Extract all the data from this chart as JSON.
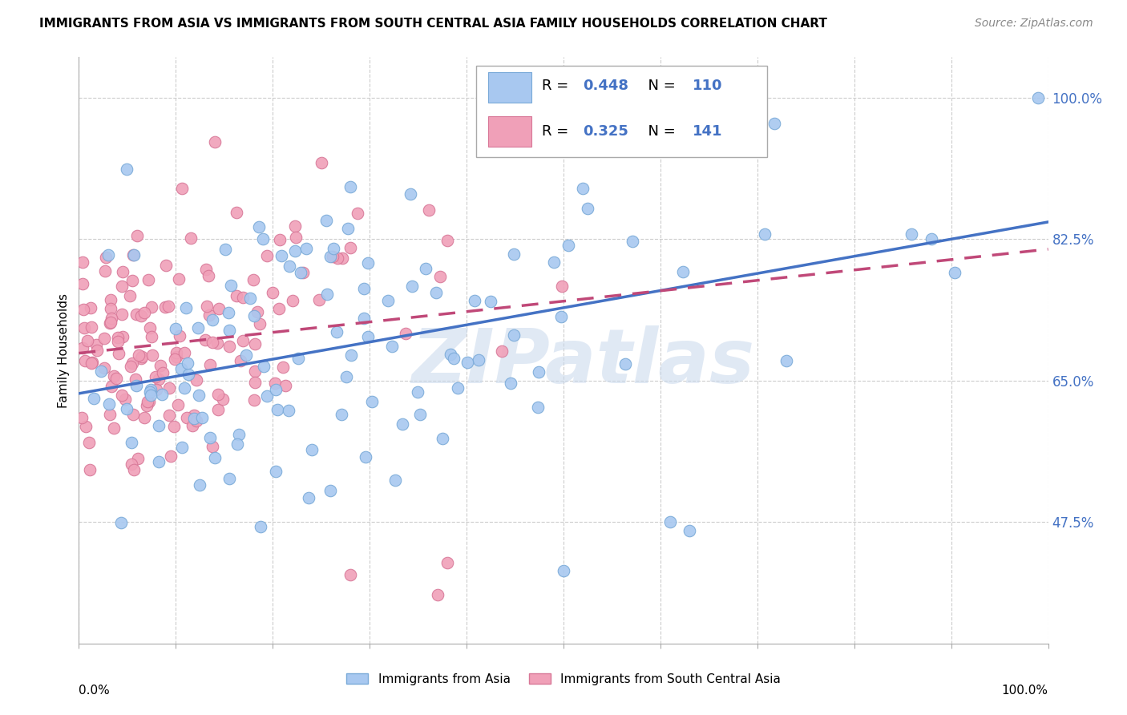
{
  "title": "IMMIGRANTS FROM ASIA VS IMMIGRANTS FROM SOUTH CENTRAL ASIA FAMILY HOUSEHOLDS CORRELATION CHART",
  "source": "Source: ZipAtlas.com",
  "ylabel": "Family Households",
  "ytick_labels": [
    "100.0%",
    "82.5%",
    "65.0%",
    "47.5%"
  ],
  "ytick_values": [
    1.0,
    0.825,
    0.65,
    0.475
  ],
  "xlim": [
    0.0,
    1.0
  ],
  "ylim": [
    0.325,
    1.05
  ],
  "blue_R": 0.448,
  "blue_N": 110,
  "pink_R": 0.325,
  "pink_N": 141,
  "blue_color": "#A8C8F0",
  "pink_color": "#F0A0B8",
  "blue_edge_color": "#7AAAD8",
  "pink_edge_color": "#D87898",
  "blue_line_color": "#4472C4",
  "pink_line_color": "#C04878",
  "legend_label_blue": "Immigrants from Asia",
  "legend_label_pink": "Immigrants from South Central Asia",
  "watermark_text": "ZIPatlas",
  "watermark_color": "#C8D8EC",
  "grid_color": "#CCCCCC",
  "tick_color": "#4472C4",
  "title_fontsize": 11,
  "source_fontsize": 10
}
